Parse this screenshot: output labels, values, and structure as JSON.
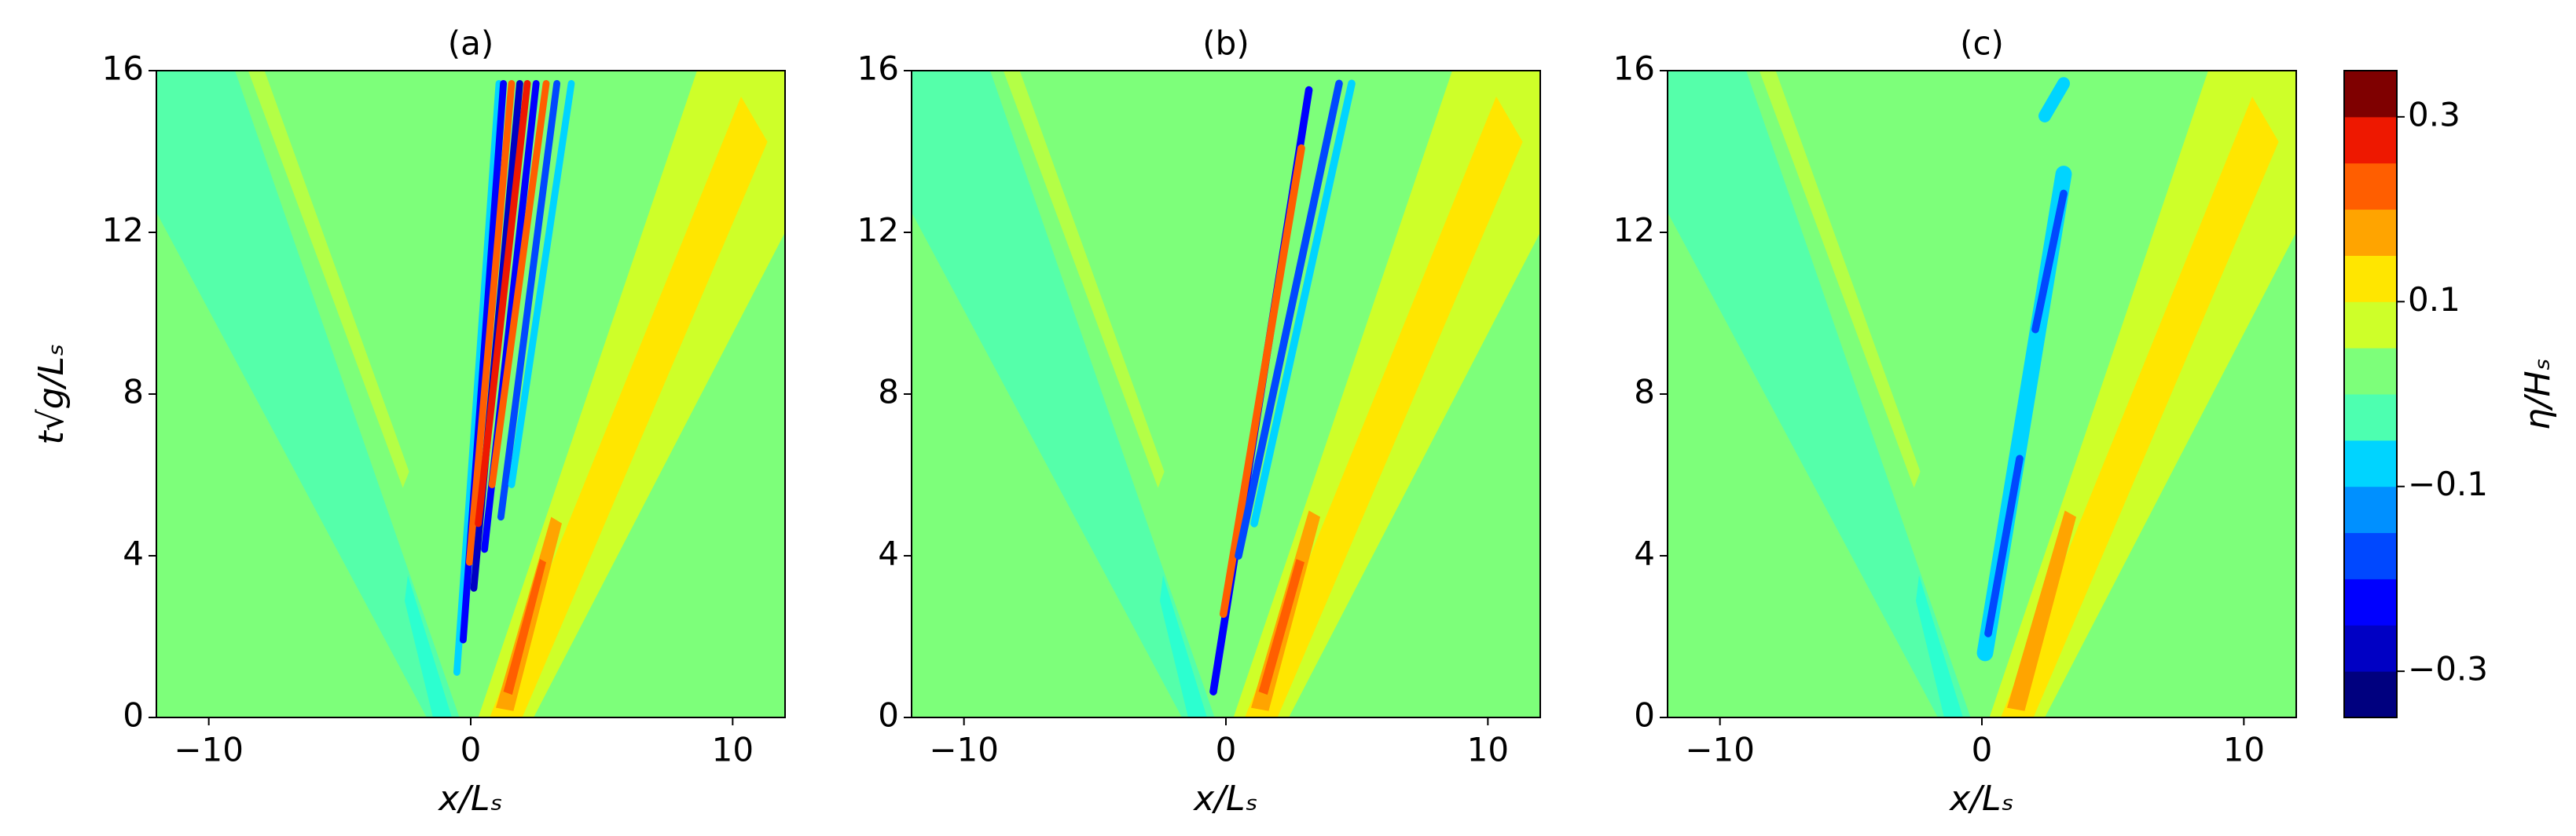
{
  "chart_data": [
    {
      "type": "contour",
      "title": "(a)",
      "x_label": "x/Lₛ",
      "y_label": "t√g/Lₛ",
      "xlim": [
        -12,
        12
      ],
      "xticks": [
        {
          "value": -10,
          "label": "−10"
        },
        0,
        10
      ],
      "ylim": [
        0,
        16
      ],
      "yticks": [
        0,
        4,
        8,
        12,
        16
      ]
    },
    {
      "type": "contour",
      "title": "(b)",
      "x_label": "x/Lₛ",
      "xlim": [
        -12,
        12
      ],
      "xticks": [
        {
          "value": -10,
          "label": "−10"
        },
        0,
        10
      ],
      "ylim": [
        0,
        16
      ],
      "yticks": [
        0,
        4,
        8,
        12,
        16
      ]
    },
    {
      "type": "contour",
      "title": "(c)",
      "x_label": "x/Lₛ",
      "xlim": [
        -12,
        12
      ],
      "xticks": [
        {
          "value": -10,
          "label": "−10"
        },
        0,
        10
      ],
      "ylim": [
        0,
        16
      ],
      "yticks": [
        0,
        4,
        8,
        12,
        16
      ]
    },
    {
      "type": "colorbar",
      "label": "η/Hₛ",
      "lim": [
        -0.35,
        0.35
      ],
      "levels": [
        -0.35,
        -0.3,
        -0.25,
        -0.2,
        -0.15,
        -0.1,
        -0.05,
        0,
        0.05,
        0.1,
        0.15,
        0.2,
        0.25,
        0.3,
        0.35
      ],
      "colors": [
        "#00007f",
        "#0000c4",
        "#0000ff",
        "#0048ff",
        "#0090ff",
        "#00d4ff",
        "#4dffb0",
        "#7dff7a",
        "#ceff29",
        "#ffe600",
        "#ffa400",
        "#ff5e00",
        "#ee1800",
        "#7f0000"
      ],
      "ticks": [
        {
          "value": -0.3,
          "label": "−0.3"
        },
        {
          "value": -0.1,
          "label": "−0.1"
        },
        0.1,
        0.3
      ]
    }
  ]
}
